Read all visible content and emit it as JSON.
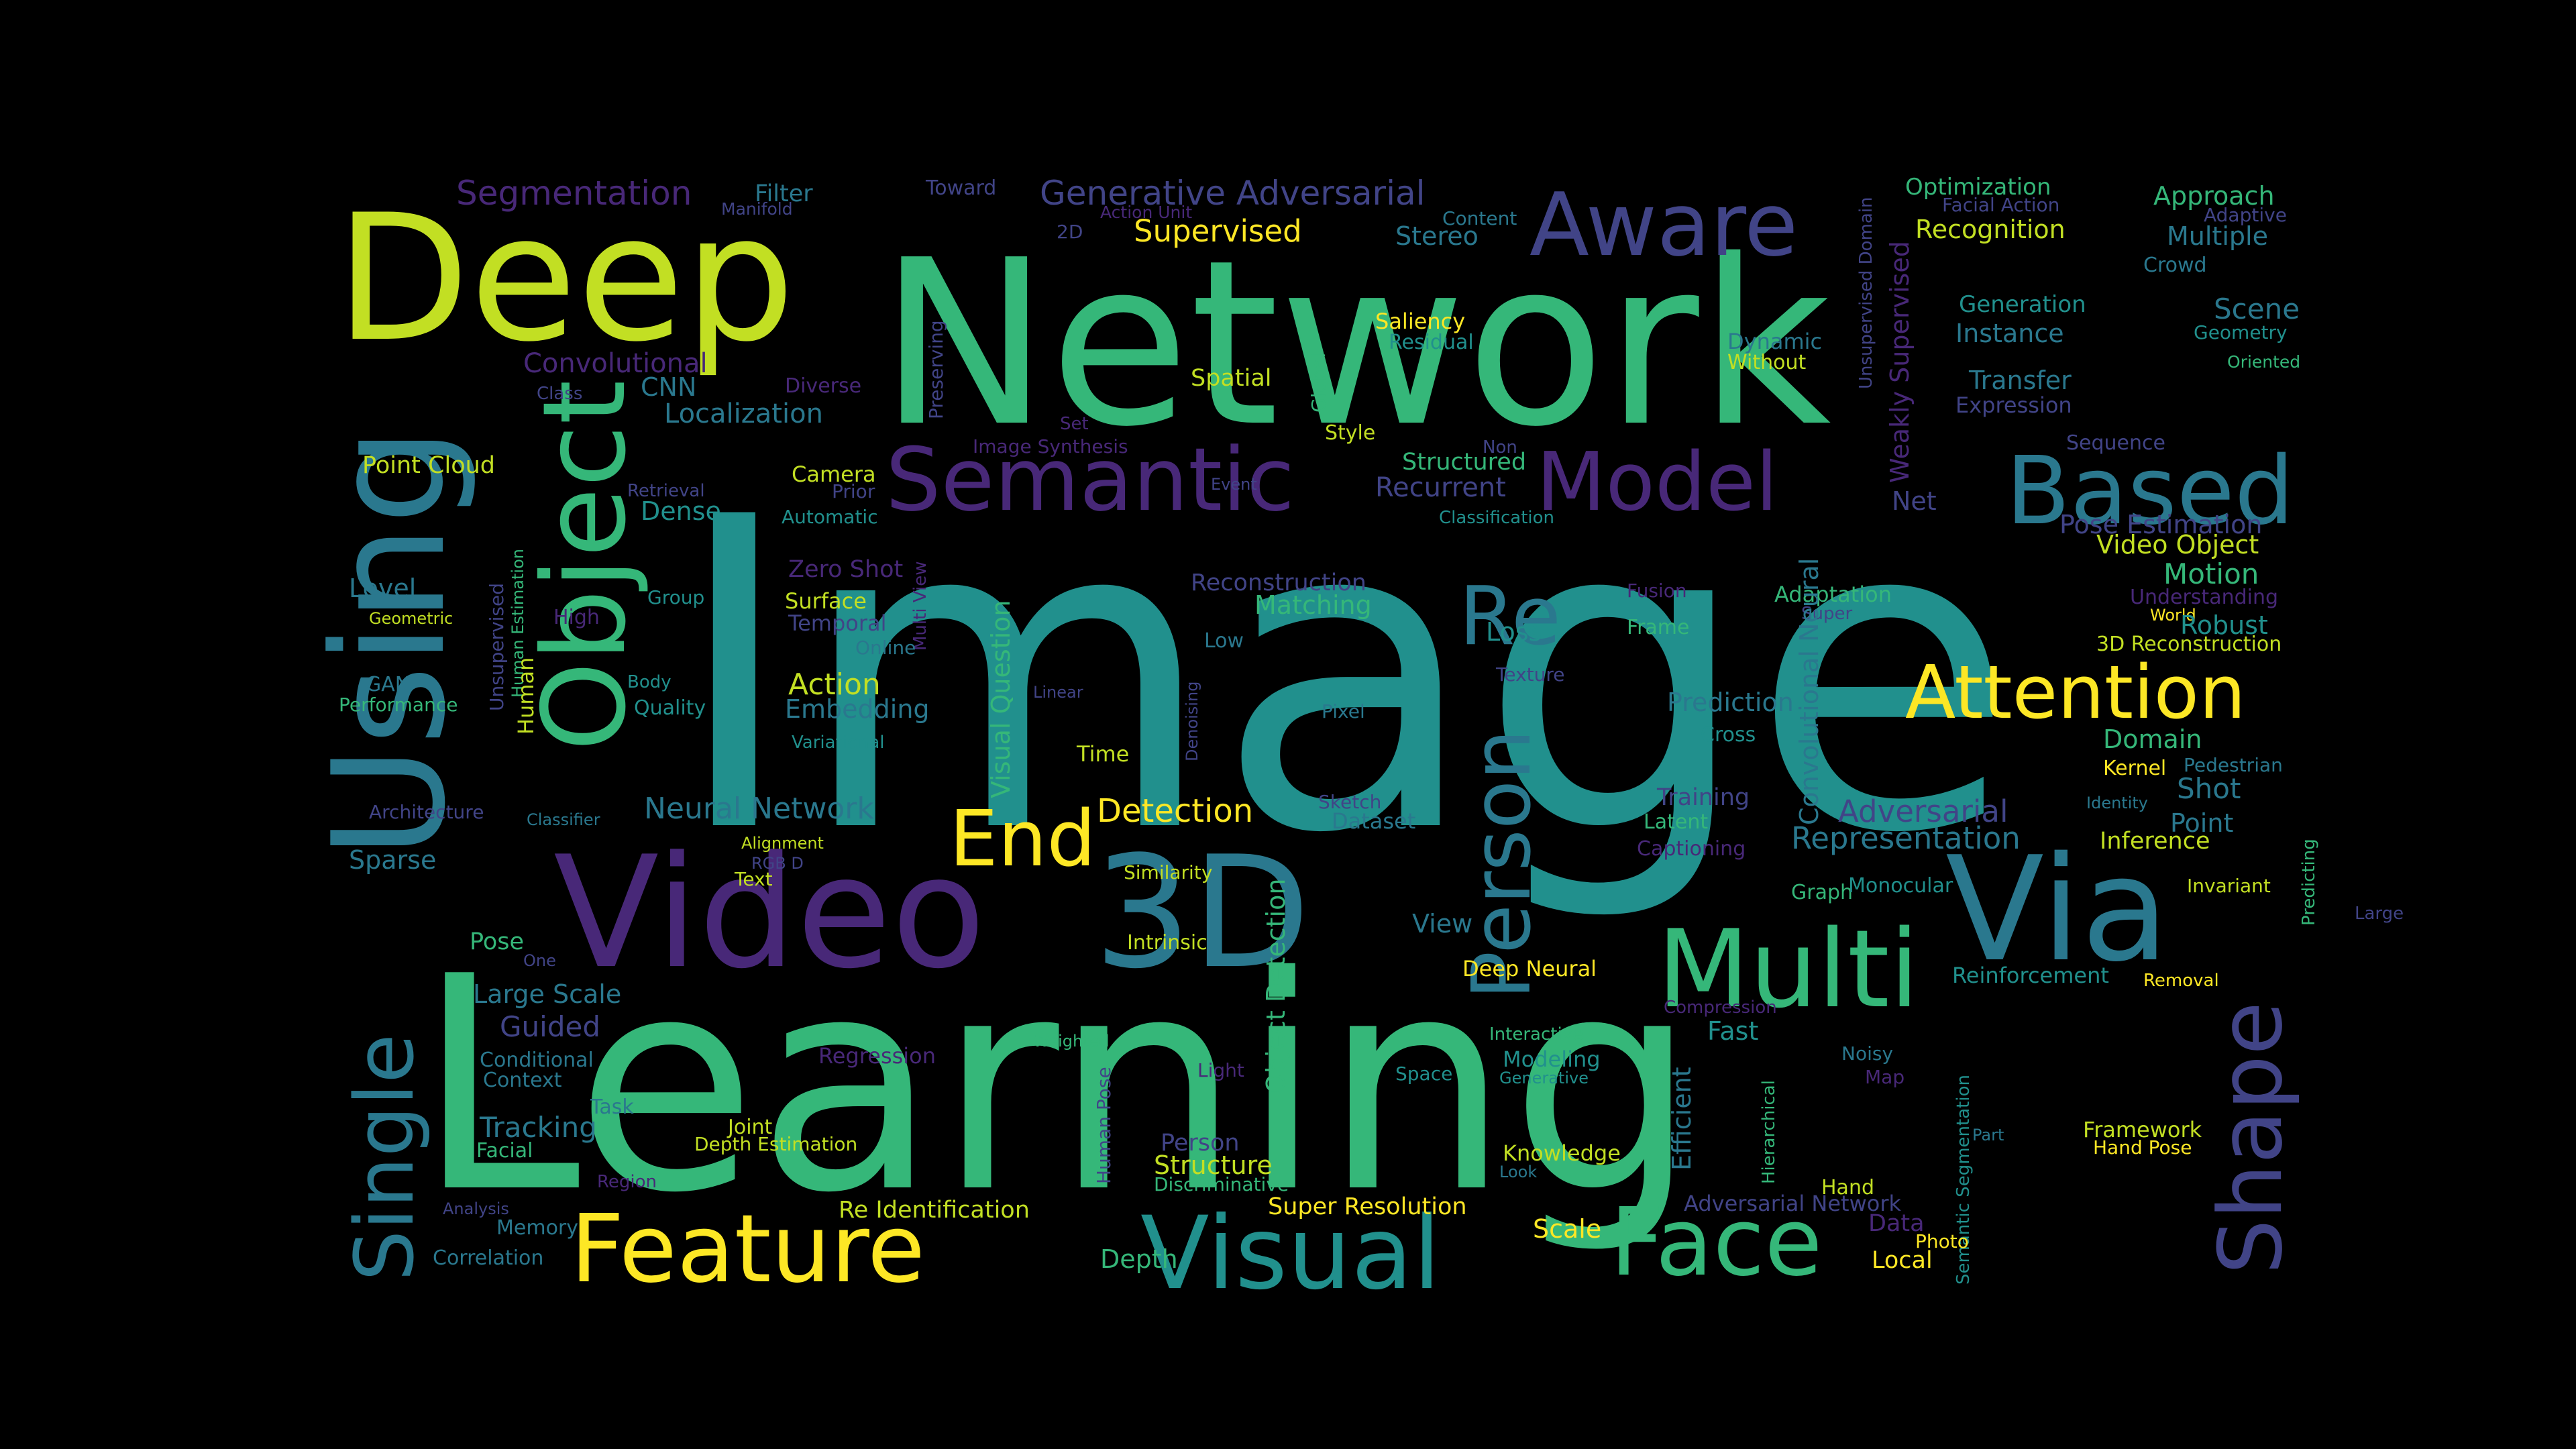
{
  "words": [
    {
      "text": "Image",
      "color": "#21908d"
    },
    {
      "text": "Learning",
      "color": "#35b779"
    },
    {
      "text": "Network",
      "color": "#35b779"
    },
    {
      "text": "Deep",
      "color": "#c2df23"
    },
    {
      "text": "Using",
      "color": "#2a788e"
    },
    {
      "text": "Video",
      "color": "#482878"
    },
    {
      "text": "3D",
      "color": "#2a788e"
    },
    {
      "text": "Via",
      "color": "#2a788e"
    },
    {
      "text": "Object",
      "color": "#35b779"
    },
    {
      "text": "Multi",
      "color": "#35b779"
    },
    {
      "text": "Feature",
      "color": "#fde725"
    },
    {
      "text": "Visual",
      "color": "#21908d"
    },
    {
      "text": "Face",
      "color": "#35b779"
    },
    {
      "text": "Single",
      "color": "#2a788e"
    },
    {
      "text": "Shape",
      "color": "#414487"
    },
    {
      "text": "Person",
      "color": "#2a788e"
    },
    {
      "text": "Re",
      "color": "#2a788e"
    },
    {
      "text": "Aware",
      "color": "#414487"
    },
    {
      "text": "Semantic",
      "color": "#482878"
    },
    {
      "text": "Model",
      "color": "#482878"
    },
    {
      "text": "Based",
      "color": "#2a788e"
    },
    {
      "text": "Attention",
      "color": "#fde725"
    },
    {
      "text": "End",
      "color": "#fde725"
    },
    {
      "text": "Segmentation",
      "color": "#482878"
    },
    {
      "text": "Generative Adversarial",
      "color": "#414487"
    },
    {
      "text": "Supervised",
      "color": "#fde725"
    },
    {
      "text": "Stereo",
      "color": "#2a788e"
    },
    {
      "text": "Filter",
      "color": "#2a788e"
    },
    {
      "text": "Manifold",
      "color": "#414487"
    },
    {
      "text": "Toward",
      "color": "#414487"
    },
    {
      "text": "Action Unit",
      "color": "#482878"
    },
    {
      "text": "2D",
      "color": "#414487"
    },
    {
      "text": "Content",
      "color": "#2a788e"
    },
    {
      "text": "Optimization",
      "color": "#35b779"
    },
    {
      "text": "Facial Action",
      "color": "#414487"
    },
    {
      "text": "Approach",
      "color": "#35b779"
    },
    {
      "text": "Adaptive",
      "color": "#414487"
    },
    {
      "text": "Multiple",
      "color": "#2a788e"
    },
    {
      "text": "Recognition",
      "color": "#c2df23"
    },
    {
      "text": "Crowd",
      "color": "#2a788e"
    },
    {
      "text": "Unsupervised Domain",
      "color": "#414487"
    },
    {
      "text": "Weakly Supervised",
      "color": "#482878"
    },
    {
      "text": "Generation",
      "color": "#21908d"
    },
    {
      "text": "Instance",
      "color": "#2a788e"
    },
    {
      "text": "Scene",
      "color": "#2a788e"
    },
    {
      "text": "Geometry",
      "color": "#21908d"
    },
    {
      "text": "Oriented",
      "color": "#35b779"
    },
    {
      "text": "Transfer",
      "color": "#2a788e"
    },
    {
      "text": "Expression",
      "color": "#414487"
    },
    {
      "text": "Saliency",
      "color": "#fde725"
    },
    {
      "text": "Residual",
      "color": "#21908d"
    },
    {
      "text": "Dynamic",
      "color": "#2a788e"
    },
    {
      "text": "Without",
      "color": "#c2df23"
    },
    {
      "text": "Convolutional",
      "color": "#482878"
    },
    {
      "text": "Class",
      "color": "#414487"
    },
    {
      "text": "CNN",
      "color": "#2a788e"
    },
    {
      "text": "Diverse",
      "color": "#482878"
    },
    {
      "text": "Preserving",
      "color": "#414487"
    },
    {
      "text": "Localization",
      "color": "#2a788e"
    },
    {
      "text": "Spatial",
      "color": "#c2df23"
    },
    {
      "text": "Global",
      "color": "#35b779"
    },
    {
      "text": "Style",
      "color": "#c2df23"
    },
    {
      "text": "Set",
      "color": "#482878"
    },
    {
      "text": "Image Synthesis",
      "color": "#482878"
    },
    {
      "text": "Event",
      "color": "#414487"
    },
    {
      "text": "Non",
      "color": "#414487"
    },
    {
      "text": "Structured",
      "color": "#35b779"
    },
    {
      "text": "Recurrent",
      "color": "#414487"
    },
    {
      "text": "Classification",
      "color": "#21908d"
    },
    {
      "text": "Sequence",
      "color": "#414487"
    },
    {
      "text": "Point Cloud",
      "color": "#c2df23"
    },
    {
      "text": "Retrieval",
      "color": "#414487"
    },
    {
      "text": "Camera",
      "color": "#c2df23"
    },
    {
      "text": "Prior",
      "color": "#414487"
    },
    {
      "text": "Automatic",
      "color": "#21908d"
    },
    {
      "text": "Dense",
      "color": "#21908d"
    },
    {
      "text": "Net",
      "color": "#414487"
    },
    {
      "text": "Pose Estimation",
      "color": "#414487"
    },
    {
      "text": "Video Object",
      "color": "#c2df23"
    },
    {
      "text": "Motion",
      "color": "#35b779"
    },
    {
      "text": "Understanding",
      "color": "#482878"
    },
    {
      "text": "World",
      "color": "#fde725"
    },
    {
      "text": "Robust",
      "color": "#21908d"
    },
    {
      "text": "3D Reconstruction",
      "color": "#c2df23"
    },
    {
      "text": "Level",
      "color": "#2a788e"
    },
    {
      "text": "Zero Shot",
      "color": "#482878"
    },
    {
      "text": "Surface",
      "color": "#c2df23"
    },
    {
      "text": "Temporal",
      "color": "#414487"
    },
    {
      "text": "Multi View",
      "color": "#482878"
    },
    {
      "text": "Online",
      "color": "#2a788e"
    },
    {
      "text": "Reconstruction",
      "color": "#414487"
    },
    {
      "text": "Matching",
      "color": "#35b779"
    },
    {
      "text": "Group",
      "color": "#21908d"
    },
    {
      "text": "Geometric",
      "color": "#c2df23"
    },
    {
      "text": "Human Estimation",
      "color": "#35b779"
    },
    {
      "text": "High",
      "color": "#482878"
    },
    {
      "text": "Unsupervised",
      "color": "#414487"
    },
    {
      "text": "Human",
      "color": "#c2df23"
    },
    {
      "text": "Fusion",
      "color": "#482878"
    },
    {
      "text": "Frame",
      "color": "#35b779"
    },
    {
      "text": "Adaptation",
      "color": "#35b779"
    },
    {
      "text": "Super",
      "color": "#414487"
    },
    {
      "text": "Loss",
      "color": "#21908d"
    },
    {
      "text": "Low",
      "color": "#2a788e"
    },
    {
      "text": "Convolutional Neural",
      "color": "#2a788e"
    },
    {
      "text": "GAN",
      "color": "#2a788e"
    },
    {
      "text": "Performance",
      "color": "#35b779"
    },
    {
      "text": "Body",
      "color": "#21908d"
    },
    {
      "text": "Quality",
      "color": "#21908d"
    },
    {
      "text": "Action",
      "color": "#c2df23"
    },
    {
      "text": "Embedding",
      "color": "#2a788e"
    },
    {
      "text": "Visual Question",
      "color": "#35b779"
    },
    {
      "text": "Linear",
      "color": "#414487"
    },
    {
      "text": "Texture",
      "color": "#414487"
    },
    {
      "text": "Prediction",
      "color": "#2a788e"
    },
    {
      "text": "Cross",
      "color": "#21908d"
    },
    {
      "text": "Pixel",
      "color": "#2a788e"
    },
    {
      "text": "Variational",
      "color": "#21908d"
    },
    {
      "text": "Time",
      "color": "#c2df23"
    },
    {
      "text": "Denoising",
      "color": "#414487"
    },
    {
      "text": "Domain",
      "color": "#35b779"
    },
    {
      "text": "Kernel",
      "color": "#fde725"
    },
    {
      "text": "Pedestrian",
      "color": "#2a788e"
    },
    {
      "text": "Shot",
      "color": "#2a788e"
    },
    {
      "text": "Identity",
      "color": "#2a788e"
    },
    {
      "text": "Neural Network",
      "color": "#2a788e"
    },
    {
      "text": "Architecture",
      "color": "#414487"
    },
    {
      "text": "Classifier",
      "color": "#2a788e"
    },
    {
      "text": "Detection",
      "color": "#fde725"
    },
    {
      "text": "Sketch",
      "color": "#414487"
    },
    {
      "text": "Dataset",
      "color": "#2a788e"
    },
    {
      "text": "Training",
      "color": "#414487"
    },
    {
      "text": "Latent",
      "color": "#35b779"
    },
    {
      "text": "Captioning",
      "color": "#482878"
    },
    {
      "text": "Adversarial",
      "color": "#414487"
    },
    {
      "text": "Point",
      "color": "#2a788e"
    },
    {
      "text": "Inference",
      "color": "#c2df23"
    },
    {
      "text": "Predicting",
      "color": "#35b779"
    },
    {
      "text": "Alignment",
      "color": "#c2df23"
    },
    {
      "text": "RGB D",
      "color": "#414487"
    },
    {
      "text": "Text",
      "color": "#c2df23"
    },
    {
      "text": "Sparse",
      "color": "#2a788e"
    },
    {
      "text": "Similarity",
      "color": "#c2df23"
    },
    {
      "text": "Representation",
      "color": "#2a788e"
    },
    {
      "text": "Graph",
      "color": "#35b779"
    },
    {
      "text": "Monocular",
      "color": "#21908d"
    },
    {
      "text": "Invariant",
      "color": "#c2df23"
    },
    {
      "text": "Large",
      "color": "#414487"
    },
    {
      "text": "Intrinsic",
      "color": "#c2df23"
    },
    {
      "text": "View",
      "color": "#2a788e"
    },
    {
      "text": "Pose",
      "color": "#35b779"
    },
    {
      "text": "One",
      "color": "#414487"
    },
    {
      "text": "Deep Neural",
      "color": "#fde725"
    },
    {
      "text": "Object Detection",
      "color": "#35b779"
    },
    {
      "text": "Reinforcement",
      "color": "#21908d"
    },
    {
      "text": "Removal",
      "color": "#fde725"
    },
    {
      "text": "Large Scale",
      "color": "#2a788e"
    },
    {
      "text": "Compression",
      "color": "#482878"
    },
    {
      "text": "Fast",
      "color": "#21908d"
    },
    {
      "text": "Guided",
      "color": "#414487"
    },
    {
      "text": "Weighted",
      "color": "#35b779"
    },
    {
      "text": "Interactive",
      "color": "#35b779"
    },
    {
      "text": "Conditional",
      "color": "#2a788e"
    },
    {
      "text": "Context",
      "color": "#2a788e"
    },
    {
      "text": "Regression",
      "color": "#482878"
    },
    {
      "text": "Light",
      "color": "#482878"
    },
    {
      "text": "Space",
      "color": "#21908d"
    },
    {
      "text": "Modeling",
      "color": "#21908d"
    },
    {
      "text": "Generative",
      "color": "#21908d"
    },
    {
      "text": "Noisy",
      "color": "#2a788e"
    },
    {
      "text": "Map",
      "color": "#482878"
    },
    {
      "text": "Task",
      "color": "#2a788e"
    },
    {
      "text": "Human Pose",
      "color": "#414487"
    },
    {
      "text": "Hierarchical",
      "color": "#35b779"
    },
    {
      "text": "Efficient",
      "color": "#2a788e"
    },
    {
      "text": "Semantic Segmentation",
      "color": "#21908d"
    },
    {
      "text": "Tracking",
      "color": "#2a788e"
    },
    {
      "text": "Joint",
      "color": "#c2df23"
    },
    {
      "text": "Depth Estimation",
      "color": "#c2df23"
    },
    {
      "text": "Facial",
      "color": "#35b779"
    },
    {
      "text": "Person",
      "color": "#414487"
    },
    {
      "text": "Structure",
      "color": "#c2df23"
    },
    {
      "text": "Discriminative",
      "color": "#35b779"
    },
    {
      "text": "Knowledge",
      "color": "#c2df23"
    },
    {
      "text": "Look",
      "color": "#2a788e"
    },
    {
      "text": "Framework",
      "color": "#c2df23"
    },
    {
      "text": "Hand Pose",
      "color": "#fde725"
    },
    {
      "text": "Part",
      "color": "#2a788e"
    },
    {
      "text": "Region",
      "color": "#482878"
    },
    {
      "text": "Hand",
      "color": "#c2df23"
    },
    {
      "text": "Analysis",
      "color": "#414487"
    },
    {
      "text": "Re Identification",
      "color": "#c2df23"
    },
    {
      "text": "Super Resolution",
      "color": "#fde725"
    },
    {
      "text": "Adversarial Network",
      "color": "#414487"
    },
    {
      "text": "Photo",
      "color": "#fde725"
    },
    {
      "text": "Data",
      "color": "#482878"
    },
    {
      "text": "Memory",
      "color": "#2a788e"
    },
    {
      "text": "Scale",
      "color": "#fde725"
    },
    {
      "text": "Local",
      "color": "#fde725"
    },
    {
      "text": "Correlation",
      "color": "#2a788e"
    },
    {
      "text": "Depth",
      "color": "#35b779"
    }
  ]
}
